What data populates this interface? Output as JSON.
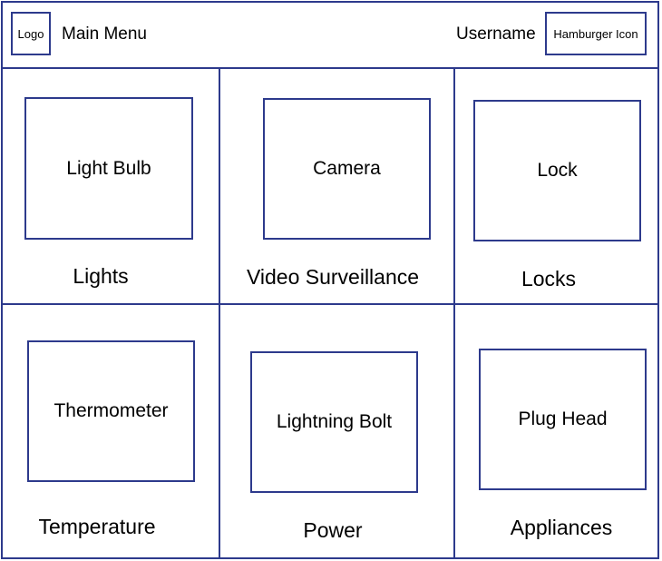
{
  "header": {
    "logo": "Logo",
    "title": "Main Menu",
    "username": "Username",
    "menu": "Hamburger Icon"
  },
  "tiles": [
    {
      "icon": "Light Bulb",
      "label": "Lights"
    },
    {
      "icon": "Camera",
      "label": "Video Surveillance"
    },
    {
      "icon": "Lock",
      "label": "Locks"
    },
    {
      "icon": "Thermometer",
      "label": "Temperature"
    },
    {
      "icon": "Lightning Bolt",
      "label": "Power"
    },
    {
      "icon": "Plug Head",
      "label": "Appliances"
    }
  ]
}
